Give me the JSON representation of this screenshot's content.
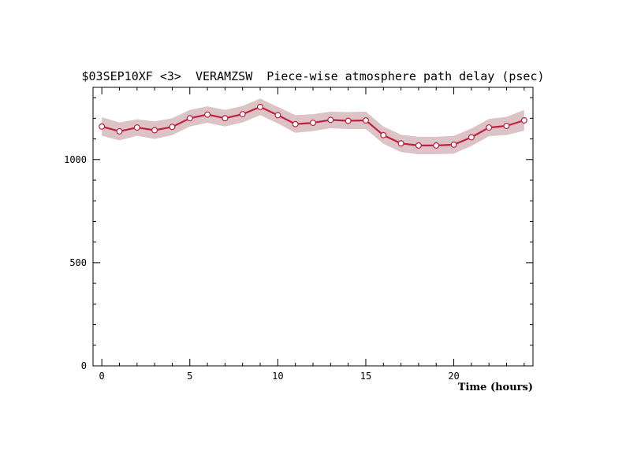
{
  "chart_data": {
    "type": "line",
    "title": "$03SEP10XF <3>  VERAMZSW  Piece-wise atmosphere path delay (psec)",
    "xlabel": "Time (hours)",
    "ylabel": "",
    "xlim": [
      -0.5,
      24.5
    ],
    "ylim": [
      0,
      1350
    ],
    "x_ticks": [
      0,
      5,
      10,
      15,
      20
    ],
    "y_ticks": [
      0,
      500,
      1000
    ],
    "x_minor_step": 1,
    "y_minor_step": 100,
    "grid": false,
    "series": [
      {
        "x": [
          0,
          1,
          2,
          3,
          4,
          5,
          6,
          7,
          8,
          9,
          10,
          11,
          12,
          13,
          14,
          15,
          16,
          17,
          18,
          19,
          20,
          21,
          22,
          23,
          24
        ],
        "values": [
          1160,
          1137,
          1155,
          1142,
          1158,
          1200,
          1218,
          1200,
          1220,
          1255,
          1215,
          1172,
          1178,
          1192,
          1188,
          1190,
          1118,
          1078,
          1068,
          1068,
          1072,
          1108,
          1155,
          1163,
          1190
        ],
        "upper": [
          1205,
          1180,
          1195,
          1185,
          1200,
          1240,
          1258,
          1240,
          1260,
          1295,
          1255,
          1215,
          1220,
          1232,
          1230,
          1232,
          1160,
          1120,
          1110,
          1110,
          1115,
          1150,
          1197,
          1207,
          1240
        ],
        "lower": [
          1115,
          1093,
          1115,
          1100,
          1118,
          1160,
          1178,
          1160,
          1180,
          1215,
          1175,
          1130,
          1138,
          1152,
          1148,
          1148,
          1076,
          1036,
          1026,
          1026,
          1029,
          1066,
          1113,
          1119,
          1140
        ],
        "color": "#c0203f",
        "band_color": "#dcc3c6"
      }
    ]
  }
}
